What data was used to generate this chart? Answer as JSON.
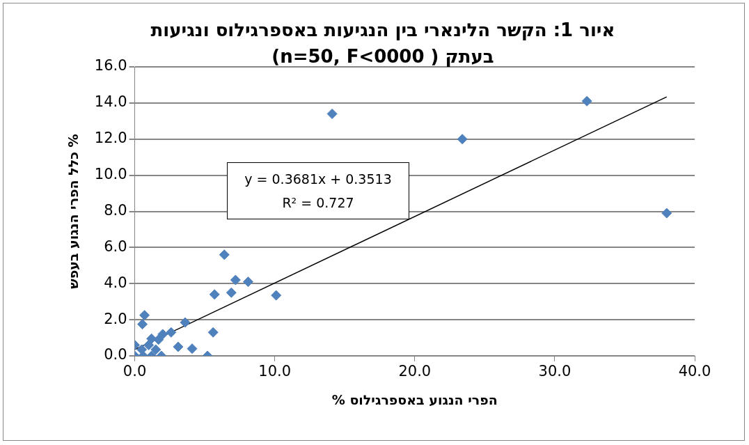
{
  "chart_data": {
    "type": "scatter",
    "title": "איור 1: הקשר הלינארי בין הנגיעות באספרגילוס ונגיעות בעתק ( n=50, F<0000)",
    "xlabel": "% הפרי הנגוע באספרגילוס",
    "ylabel": "כלל הפרי הנגוע בעפש %",
    "annotations": [
      "y = 0.3681x + 0.3513",
      "R² = 0.727"
    ],
    "series": [
      {
        "type": "scatter",
        "color": "#4f81bd",
        "marker": "diamond",
        "x": [
          14.1,
          23.4,
          32.3,
          38.0,
          6.4,
          7.2,
          8.1,
          5.7,
          6.9,
          10.1,
          3.6,
          5.6,
          3.1,
          4.1,
          5.2,
          0.7,
          0.55,
          2.6,
          2.0,
          1.7,
          0,
          0,
          0.6,
          1.2,
          1.9,
          0.5,
          1.0,
          1.5,
          1.2
        ],
        "values": [
          13.4,
          12.0,
          14.1,
          7.9,
          5.6,
          4.2,
          4.1,
          3.4,
          3.5,
          3.35,
          1.85,
          1.3,
          0.5,
          0.4,
          0,
          2.25,
          1.75,
          1.3,
          1.2,
          0.9,
          0.6,
          0,
          0,
          0,
          0,
          0.35,
          0.6,
          0.35,
          0.95
        ]
      },
      {
        "type": "line",
        "color": "#000000",
        "marker": "none",
        "x": [
          0,
          38
        ],
        "values": [
          0.35,
          14.34
        ]
      }
    ],
    "xlim": [
      0,
      40
    ],
    "xticks": [
      {
        "value": 0,
        "label": "0.0"
      },
      {
        "value": 10,
        "label": "10.0"
      },
      {
        "value": 20,
        "label": "20.0"
      },
      {
        "value": 30,
        "label": "30.0"
      },
      {
        "value": 40,
        "label": "40.0"
      }
    ],
    "ylim": [
      0,
      16
    ],
    "yticks": [
      {
        "value": 0,
        "label": "0.0"
      },
      {
        "value": 2,
        "label": "2.0"
      },
      {
        "value": 4,
        "label": "4.0"
      },
      {
        "value": 6,
        "label": "6.0"
      },
      {
        "value": 8,
        "label": "8.0"
      },
      {
        "value": 10,
        "label": "10.0"
      },
      {
        "value": 12,
        "label": "12.0"
      },
      {
        "value": 14,
        "label": "14.0"
      },
      {
        "value": 16,
        "label": "16.0"
      }
    ],
    "grid": "y",
    "legend": false
  }
}
